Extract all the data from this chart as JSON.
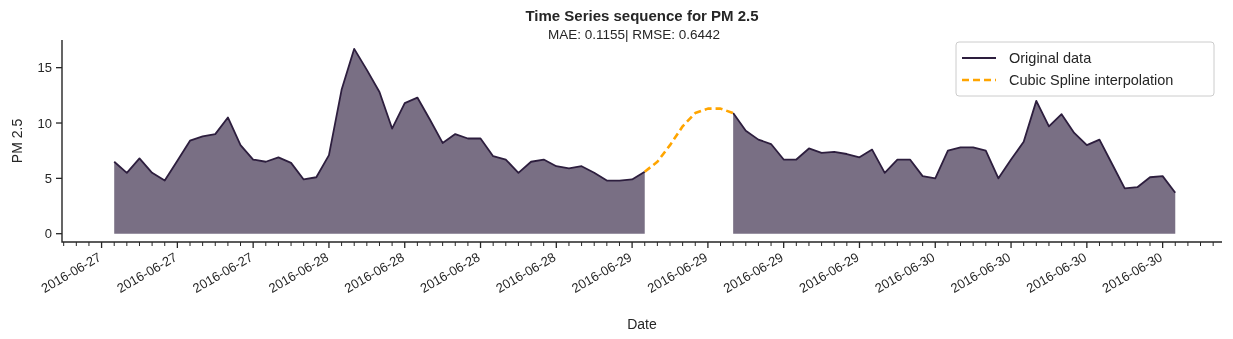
{
  "chart_data": {
    "type": "area",
    "title": "Time Series sequence for PM 2.5",
    "subtitle": "MAE: 0.1155| RMSE: 0.6442",
    "xlabel": "Date",
    "ylabel": "PM 2.5",
    "x": [
      "2016-06-27T07:00",
      "2016-06-27T08:00",
      "2016-06-27T09:00",
      "2016-06-27T10:00",
      "2016-06-27T11:00",
      "2016-06-27T12:00",
      "2016-06-27T13:00",
      "2016-06-27T14:00",
      "2016-06-27T15:00",
      "2016-06-27T16:00",
      "2016-06-27T17:00",
      "2016-06-27T18:00",
      "2016-06-27T19:00",
      "2016-06-27T20:00",
      "2016-06-27T21:00",
      "2016-06-27T22:00",
      "2016-06-27T23:00",
      "2016-06-28T00:00",
      "2016-06-28T01:00",
      "2016-06-28T02:00",
      "2016-06-28T03:00",
      "2016-06-28T04:00",
      "2016-06-28T05:00",
      "2016-06-28T06:00",
      "2016-06-28T07:00",
      "2016-06-28T08:00",
      "2016-06-28T09:00",
      "2016-06-28T10:00",
      "2016-06-28T11:00",
      "2016-06-28T12:00",
      "2016-06-28T13:00",
      "2016-06-28T14:00",
      "2016-06-28T15:00",
      "2016-06-28T16:00",
      "2016-06-28T17:00",
      "2016-06-28T18:00",
      "2016-06-28T19:00",
      "2016-06-28T20:00",
      "2016-06-28T21:00",
      "2016-06-28T22:00",
      "2016-06-28T23:00",
      "2016-06-29T00:00",
      "2016-06-29T01:00",
      "2016-06-29T02:00",
      "2016-06-29T03:00",
      "2016-06-29T04:00",
      "2016-06-29T05:00",
      "2016-06-29T06:00",
      "2016-06-29T07:00",
      "2016-06-29T08:00",
      "2016-06-29T09:00",
      "2016-06-29T10:00",
      "2016-06-29T11:00",
      "2016-06-29T12:00",
      "2016-06-29T13:00",
      "2016-06-29T14:00",
      "2016-06-29T15:00",
      "2016-06-29T16:00",
      "2016-06-29T17:00",
      "2016-06-29T18:00",
      "2016-06-29T19:00",
      "2016-06-29T20:00",
      "2016-06-29T21:00",
      "2016-06-29T22:00",
      "2016-06-29T23:00",
      "2016-06-30T00:00",
      "2016-06-30T01:00",
      "2016-06-30T02:00",
      "2016-06-30T03:00",
      "2016-06-30T04:00",
      "2016-06-30T05:00",
      "2016-06-30T06:00",
      "2016-06-30T07:00",
      "2016-06-30T08:00",
      "2016-06-30T09:00",
      "2016-06-30T10:00",
      "2016-06-30T11:00",
      "2016-06-30T12:00",
      "2016-06-30T13:00",
      "2016-06-30T14:00",
      "2016-06-30T15:00",
      "2016-06-30T16:00",
      "2016-06-30T17:00",
      "2016-06-30T18:00",
      "2016-06-30T19:00"
    ],
    "series": [
      {
        "name": "Original data",
        "color": "#2d1e3e",
        "values": [
          6.5,
          5.5,
          6.8,
          5.5,
          4.8,
          6.6,
          8.4,
          8.8,
          9.0,
          10.5,
          8.0,
          6.7,
          6.5,
          6.9,
          6.4,
          4.9,
          5.1,
          7.1,
          13.0,
          16.7,
          14.8,
          12.8,
          9.5,
          11.8,
          12.3,
          10.3,
          8.2,
          9.0,
          8.6,
          8.6,
          7.0,
          6.7,
          5.5,
          6.5,
          6.7,
          6.1,
          5.9,
          6.1,
          5.5,
          4.8,
          4.8,
          4.9,
          5.6,
          null,
          null,
          null,
          null,
          null,
          null,
          10.9,
          9.3,
          8.5,
          8.1,
          6.7,
          6.7,
          7.7,
          7.3,
          7.4,
          7.2,
          6.9,
          7.6,
          5.5,
          6.7,
          6.7,
          5.2,
          5.0,
          7.5,
          7.8,
          7.8,
          7.5,
          5.0,
          6.7,
          8.3,
          12.0,
          9.7,
          10.8,
          9.1,
          8.0,
          8.5,
          6.3,
          4.1,
          4.2,
          5.1,
          5.2,
          3.7
        ]
      },
      {
        "name": "Cubic Spline interpolation",
        "type": "line",
        "line_style": "dashed",
        "color": "#ffa500",
        "x": [
          "2016-06-29T01:00",
          "2016-06-29T02:00",
          "2016-06-29T03:00",
          "2016-06-29T04:00",
          "2016-06-29T05:00",
          "2016-06-29T06:00",
          "2016-06-29T07:00",
          "2016-06-29T08:00"
        ],
        "values": [
          5.6,
          6.5,
          8.0,
          9.7,
          10.9,
          11.3,
          11.3,
          10.9
        ]
      }
    ],
    "xlim": [
      "2016-06-27T02:52",
      "2016-06-30T22:42"
    ],
    "xticks": [
      {
        "value": "2016-06-27T03:00",
        "label": null
      },
      {
        "value": "2016-06-27T04:00",
        "label": null
      },
      {
        "value": "2016-06-27T05:00",
        "label": null
      },
      {
        "value": "2016-06-27T06:00",
        "label": "2016-06-27"
      },
      {
        "value": "2016-06-27T07:00",
        "label": null
      },
      {
        "value": "2016-06-27T08:00",
        "label": null
      },
      {
        "value": "2016-06-27T09:00",
        "label": null
      },
      {
        "value": "2016-06-27T10:00",
        "label": null
      },
      {
        "value": "2016-06-27T11:00",
        "label": null
      },
      {
        "value": "2016-06-27T12:00",
        "label": "2016-06-27"
      },
      {
        "value": "2016-06-27T13:00",
        "label": null
      },
      {
        "value": "2016-06-27T14:00",
        "label": null
      },
      {
        "value": "2016-06-27T15:00",
        "label": null
      },
      {
        "value": "2016-06-27T16:00",
        "label": null
      },
      {
        "value": "2016-06-27T17:00",
        "label": null
      },
      {
        "value": "2016-06-27T18:00",
        "label": "2016-06-27"
      },
      {
        "value": "2016-06-27T19:00",
        "label": null
      },
      {
        "value": "2016-06-27T20:00",
        "label": null
      },
      {
        "value": "2016-06-27T21:00",
        "label": null
      },
      {
        "value": "2016-06-27T22:00",
        "label": null
      },
      {
        "value": "2016-06-27T23:00",
        "label": null
      },
      {
        "value": "2016-06-28T00:00",
        "label": "2016-06-28"
      },
      {
        "value": "2016-06-28T01:00",
        "label": null
      },
      {
        "value": "2016-06-28T02:00",
        "label": null
      },
      {
        "value": "2016-06-28T03:00",
        "label": null
      },
      {
        "value": "2016-06-28T04:00",
        "label": null
      },
      {
        "value": "2016-06-28T05:00",
        "label": null
      },
      {
        "value": "2016-06-28T06:00",
        "label": "2016-06-28"
      },
      {
        "value": "2016-06-28T07:00",
        "label": null
      },
      {
        "value": "2016-06-28T08:00",
        "label": null
      },
      {
        "value": "2016-06-28T09:00",
        "label": null
      },
      {
        "value": "2016-06-28T10:00",
        "label": null
      },
      {
        "value": "2016-06-28T11:00",
        "label": null
      },
      {
        "value": "2016-06-28T12:00",
        "label": "2016-06-28"
      },
      {
        "value": "2016-06-28T13:00",
        "label": null
      },
      {
        "value": "2016-06-28T14:00",
        "label": null
      },
      {
        "value": "2016-06-28T15:00",
        "label": null
      },
      {
        "value": "2016-06-28T16:00",
        "label": null
      },
      {
        "value": "2016-06-28T17:00",
        "label": null
      },
      {
        "value": "2016-06-28T18:00",
        "label": "2016-06-28"
      },
      {
        "value": "2016-06-28T19:00",
        "label": null
      },
      {
        "value": "2016-06-28T20:00",
        "label": null
      },
      {
        "value": "2016-06-28T21:00",
        "label": null
      },
      {
        "value": "2016-06-28T22:00",
        "label": null
      },
      {
        "value": "2016-06-28T23:00",
        "label": null
      },
      {
        "value": "2016-06-29T00:00",
        "label": "2016-06-29"
      },
      {
        "value": "2016-06-29T01:00",
        "label": null
      },
      {
        "value": "2016-06-29T02:00",
        "label": null
      },
      {
        "value": "2016-06-29T03:00",
        "label": null
      },
      {
        "value": "2016-06-29T04:00",
        "label": null
      },
      {
        "value": "2016-06-29T05:00",
        "label": null
      },
      {
        "value": "2016-06-29T06:00",
        "label": "2016-06-29"
      },
      {
        "value": "2016-06-29T07:00",
        "label": null
      },
      {
        "value": "2016-06-29T08:00",
        "label": null
      },
      {
        "value": "2016-06-29T09:00",
        "label": null
      },
      {
        "value": "2016-06-29T10:00",
        "label": null
      },
      {
        "value": "2016-06-29T11:00",
        "label": null
      },
      {
        "value": "2016-06-29T12:00",
        "label": "2016-06-29"
      },
      {
        "value": "2016-06-29T13:00",
        "label": null
      },
      {
        "value": "2016-06-29T14:00",
        "label": null
      },
      {
        "value": "2016-06-29T15:00",
        "label": null
      },
      {
        "value": "2016-06-29T16:00",
        "label": null
      },
      {
        "value": "2016-06-29T17:00",
        "label": null
      },
      {
        "value": "2016-06-29T18:00",
        "label": "2016-06-29"
      },
      {
        "value": "2016-06-29T19:00",
        "label": null
      },
      {
        "value": "2016-06-29T20:00",
        "label": null
      },
      {
        "value": "2016-06-29T21:00",
        "label": null
      },
      {
        "value": "2016-06-29T22:00",
        "label": null
      },
      {
        "value": "2016-06-29T23:00",
        "label": null
      },
      {
        "value": "2016-06-30T00:00",
        "label": "2016-06-30"
      },
      {
        "value": "2016-06-30T01:00",
        "label": null
      },
      {
        "value": "2016-06-30T02:00",
        "label": null
      },
      {
        "value": "2016-06-30T03:00",
        "label": null
      },
      {
        "value": "2016-06-30T04:00",
        "label": null
      },
      {
        "value": "2016-06-30T05:00",
        "label": null
      },
      {
        "value": "2016-06-30T06:00",
        "label": "2016-06-30"
      },
      {
        "value": "2016-06-30T07:00",
        "label": null
      },
      {
        "value": "2016-06-30T08:00",
        "label": null
      },
      {
        "value": "2016-06-30T09:00",
        "label": null
      },
      {
        "value": "2016-06-30T10:00",
        "label": null
      },
      {
        "value": "2016-06-30T11:00",
        "label": null
      },
      {
        "value": "2016-06-30T12:00",
        "label": "2016-06-30"
      },
      {
        "value": "2016-06-30T13:00",
        "label": null
      },
      {
        "value": "2016-06-30T14:00",
        "label": null
      },
      {
        "value": "2016-06-30T15:00",
        "label": null
      },
      {
        "value": "2016-06-30T16:00",
        "label": null
      },
      {
        "value": "2016-06-30T17:00",
        "label": null
      },
      {
        "value": "2016-06-30T18:00",
        "label": "2016-06-30"
      },
      {
        "value": "2016-06-30T19:00",
        "label": null
      },
      {
        "value": "2016-06-30T20:00",
        "label": null
      },
      {
        "value": "2016-06-30T21:00",
        "label": null
      },
      {
        "value": "2016-06-30T22:00",
        "label": null
      }
    ],
    "ylim": [
      -0.75,
      17.5
    ],
    "yticks": [
      0,
      5,
      10,
      15
    ],
    "grid": false,
    "legend": "top right"
  }
}
